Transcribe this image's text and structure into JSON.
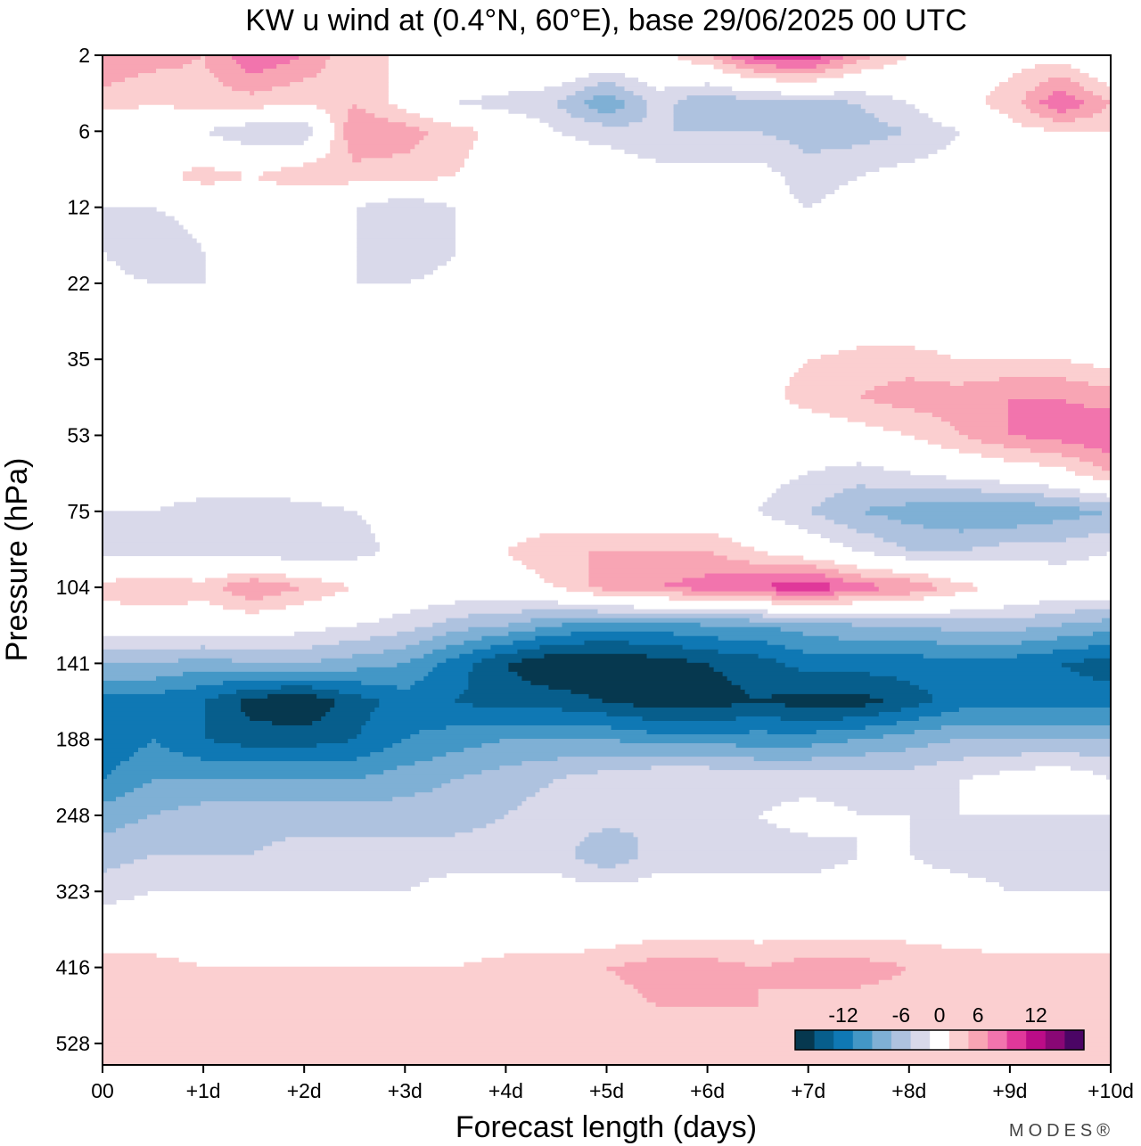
{
  "chart_data": {
    "type": "heatmap",
    "title": "KW u wind at (0.4°N, 60°E),  base 29/06/2025  00 UTC",
    "xlabel": "Forecast length (days)",
    "ylabel": "Pressure (hPa)",
    "x_ticks": [
      "00",
      "+1d",
      "+2d",
      "+3d",
      "+4d",
      "+5d",
      "+6d",
      "+7d",
      "+8d",
      "+9d",
      "+10d"
    ],
    "y_ticks": [
      "2",
      "6",
      "12",
      "22",
      "35",
      "53",
      "75",
      "104",
      "141",
      "188",
      "248",
      "323",
      "416",
      "528"
    ],
    "x": [
      0,
      0.5,
      1,
      1.5,
      2,
      2.5,
      3,
      3.5,
      4,
      4.5,
      5,
      5.5,
      6,
      6.5,
      7,
      7.5,
      8,
      8.5,
      9,
      9.5,
      10
    ],
    "y": [
      2,
      4,
      6,
      9,
      12,
      17,
      22,
      28,
      35,
      43,
      53,
      63,
      75,
      89,
      104,
      121,
      141,
      163,
      188,
      217,
      248,
      284,
      323,
      367,
      416,
      470,
      528,
      600
    ],
    "z": [
      [
        6,
        5,
        4,
        8,
        6,
        2,
        2,
        2,
        2,
        2,
        1,
        1,
        4,
        9,
        10,
        5,
        2,
        1,
        1,
        1,
        -2
      ],
      [
        3,
        2,
        3,
        3,
        2,
        4,
        1,
        -2,
        -3,
        -4,
        -8,
        -3,
        -6,
        -5,
        -5,
        -4,
        -2,
        1,
        3,
        8,
        4
      ],
      [
        -1,
        0,
        -2,
        -4,
        -4,
        6,
        5,
        3,
        1,
        -2,
        -3,
        -4,
        -4,
        -4,
        -5,
        -5,
        -4,
        -2,
        1,
        2,
        2
      ],
      [
        0,
        1,
        3,
        2,
        4,
        3,
        3,
        2,
        0,
        0,
        0,
        -1,
        -1,
        -1,
        -3,
        -2,
        -1,
        -1,
        -1,
        0,
        0
      ],
      [
        -2,
        -2,
        -1,
        -1,
        -2,
        -2,
        -4,
        -2,
        0,
        0,
        0,
        -2,
        -1,
        -1,
        -2,
        -1,
        -1,
        -1,
        -2,
        -1,
        -1
      ],
      [
        -2,
        -4,
        -2,
        -1,
        -1,
        -2,
        -4,
        -2,
        0,
        0,
        0,
        -1,
        -1,
        -2,
        -1,
        -1,
        -2,
        -1,
        -2,
        -1,
        -1
      ],
      [
        -1,
        -2,
        -2,
        -1,
        -1,
        -2,
        -2,
        -1,
        0,
        0,
        0,
        0,
        -1,
        -2,
        -1,
        -1,
        -1,
        -1,
        -1,
        -2,
        -2
      ],
      [
        0,
        0,
        0,
        0,
        0,
        -1,
        -1,
        -2,
        0,
        0,
        0,
        0,
        -1,
        0,
        -1,
        0,
        0,
        0,
        0,
        -1,
        -1
      ],
      [
        0,
        0,
        0,
        0,
        0,
        0,
        0,
        0,
        -1,
        -1,
        0,
        0,
        0,
        1,
        2,
        3,
        3,
        2,
        2,
        2,
        1
      ],
      [
        0,
        0,
        0,
        0,
        0,
        0,
        0,
        0,
        0,
        0,
        0,
        0,
        1,
        1,
        3,
        4,
        5,
        5,
        6,
        6,
        5
      ],
      [
        0,
        0,
        0,
        0,
        0,
        0,
        0,
        0,
        0,
        -1,
        -2,
        -2,
        -1,
        -1,
        0,
        1,
        2,
        4,
        6,
        7,
        8
      ],
      [
        2,
        2,
        2,
        1,
        1,
        1,
        1,
        0,
        0,
        -1,
        -2,
        -2,
        -2,
        -1,
        -2,
        -3,
        -2,
        -1,
        0,
        1,
        4
      ],
      [
        -2,
        -2,
        -4,
        -4,
        -3,
        -2,
        -1,
        0,
        0,
        0,
        0,
        0,
        0,
        -2,
        -4,
        -6,
        -7,
        -8,
        -8,
        -7,
        -6
      ],
      [
        -3,
        -3,
        -3,
        -3,
        -4,
        -3,
        -1,
        0,
        2,
        4,
        4,
        4,
        4,
        2,
        0,
        -2,
        -4,
        -4,
        -3,
        -3,
        -2
      ],
      [
        3,
        4,
        3,
        6,
        4,
        2,
        0,
        0,
        0,
        2,
        5,
        6,
        7,
        8,
        10,
        7,
        6,
        3,
        1,
        0,
        0
      ],
      [
        0,
        0,
        0,
        0,
        -1,
        -2,
        -3,
        -5,
        -6,
        -8,
        -9,
        -9,
        -8,
        -8,
        -7,
        -6,
        -6,
        -5,
        -5,
        -6,
        -7
      ],
      [
        -6,
        -6,
        -7,
        -6,
        -6,
        -7,
        -8,
        -11,
        -14,
        -16,
        -16,
        -15,
        -14,
        -13,
        -11,
        -11,
        -11,
        -11,
        -11,
        -12,
        -13
      ],
      [
        -11,
        -11,
        -12,
        -15,
        -16,
        -13,
        -11,
        -12,
        -13,
        -13,
        -14,
        -15,
        -15,
        -14,
        -15,
        -15,
        -13,
        -11,
        -11,
        -11,
        -11
      ],
      [
        -12,
        -10,
        -12,
        -13,
        -13,
        -12,
        -10,
        -9,
        -8,
        -8,
        -8,
        -9,
        -9,
        -9,
        -9,
        -8,
        -7,
        -6,
        -6,
        -6,
        -6
      ],
      [
        -10,
        -8,
        -8,
        -8,
        -8,
        -8,
        -7,
        -6,
        -5,
        -4,
        -3,
        -2,
        -2,
        -3,
        -3,
        -3,
        -3,
        -2,
        -1,
        0,
        -2
      ],
      [
        -7,
        -6,
        -5,
        -5,
        -5,
        -5,
        -5,
        -5,
        -4,
        -3,
        -3,
        -4,
        -2,
        -2,
        -1,
        -2,
        -2,
        -2,
        -2,
        -2,
        -2
      ],
      [
        -5,
        -4,
        -4,
        -4,
        -3,
        -3,
        -3,
        -3,
        -3,
        -3,
        -6,
        -3,
        -3,
        -3,
        -3,
        -2,
        -2,
        -3,
        -3,
        -4,
        -4
      ],
      [
        -3,
        -2,
        -2,
        -2,
        -2,
        -2,
        -2,
        -1,
        -1,
        -1,
        -1,
        -1,
        -1,
        -1,
        -1,
        -1,
        -1,
        -1,
        -2,
        -2,
        -2
      ],
      [
        0,
        0,
        0,
        0,
        0,
        0,
        0,
        0,
        0,
        0,
        0,
        1,
        1,
        1,
        1,
        1,
        1,
        0,
        0,
        0,
        0
      ],
      [
        3,
        3,
        2,
        2,
        2,
        2,
        2,
        2,
        3,
        3,
        4,
        5,
        5,
        4,
        5,
        5,
        4,
        4,
        3,
        3,
        3
      ],
      [
        4,
        4,
        4,
        4,
        3,
        4,
        3,
        2,
        2,
        3,
        3,
        4,
        4,
        4,
        3,
        3,
        3,
        3,
        2,
        2,
        2
      ],
      [
        3,
        3,
        3,
        3,
        3,
        3,
        2,
        2,
        2,
        2,
        2,
        2,
        2,
        2,
        2,
        2,
        2,
        2,
        2,
        2,
        2
      ],
      [
        2,
        2,
        2,
        2,
        2,
        2,
        2,
        2,
        2,
        2,
        2,
        2,
        2,
        2,
        2,
        2,
        2,
        2,
        2,
        2,
        2
      ]
    ],
    "ylim": [
      2,
      600
    ],
    "xlim": [
      0,
      10
    ],
    "y_scale": "log",
    "levels": [
      -16,
      -14,
      -12,
      -10,
      -8,
      -6,
      -4,
      -2,
      2,
      4,
      6,
      8,
      10,
      12,
      14,
      16
    ],
    "colors": [
      "#06384f",
      "#075e8c",
      "#0f78b4",
      "#4397c6",
      "#7fb0d5",
      "#aec2df",
      "#d9d9ea",
      "#ffffff",
      "#fbcfd0",
      "#f8a5b4",
      "#f274ad",
      "#e0389a",
      "#bb0c87",
      "#890775",
      "#4b0565"
    ],
    "colorbar_labels": [
      "-12",
      "-6",
      "0",
      "6",
      "12"
    ],
    "grid": false,
    "legend": "colorbar bottom-right"
  },
  "credit": "MODES®"
}
